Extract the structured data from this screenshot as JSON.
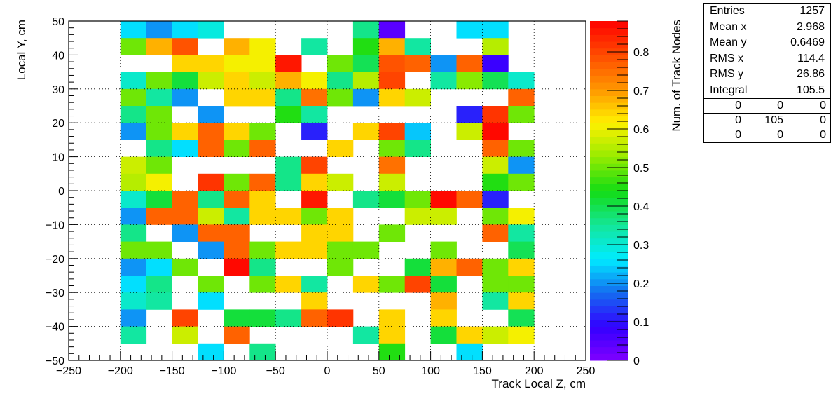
{
  "chart_data": {
    "type": "heatmap",
    "title": "",
    "xlabel": "Track Local Z, cm",
    "ylabel": "Local Y, cm",
    "zlabel": "Num. of Track Nodes",
    "xlim": [
      -250,
      250
    ],
    "ylim": [
      -50,
      50
    ],
    "zlim": [
      0,
      0.88
    ],
    "x_bin_edges_start": -200,
    "x_bin_width": 25,
    "x_bins": 16,
    "y_bin_edges_start": -50,
    "y_bin_width": 5,
    "y_bins": 20,
    "x_ticks": [
      -250,
      -200,
      -150,
      -100,
      -50,
      0,
      50,
      100,
      150,
      200,
      250
    ],
    "y_ticks": [
      -50,
      -40,
      -30,
      -20,
      -10,
      0,
      10,
      20,
      30,
      40,
      50
    ],
    "z_ticks": [
      0,
      0.1,
      0.2,
      0.3,
      0.4,
      0.5,
      0.6,
      0.7,
      0.8
    ],
    "grid": true,
    "values_rows_top_to_bottom": [
      [
        0.26,
        0.2,
        0.26,
        0.29,
        null,
        null,
        null,
        null,
        null,
        0.36,
        0.05,
        null,
        null,
        0.26,
        0.26,
        null
      ],
      [
        0.5,
        0.68,
        0.78,
        null,
        0.68,
        0.6,
        null,
        0.34,
        null,
        0.44,
        0.68,
        0.34,
        null,
        null,
        0.55,
        null
      ],
      [
        null,
        null,
        0.65,
        0.65,
        0.6,
        0.6,
        0.85,
        null,
        0.5,
        0.4,
        0.78,
        0.76,
        0.2,
        0.76,
        0.08,
        null
      ],
      [
        0.3,
        0.5,
        0.42,
        0.58,
        0.65,
        0.58,
        0.68,
        0.6,
        0.36,
        0.55,
        0.8,
        null,
        0.34,
        0.52,
        0.4,
        0.3
      ],
      [
        0.5,
        0.34,
        0.2,
        null,
        0.65,
        0.65,
        0.36,
        0.74,
        0.5,
        0.2,
        0.65,
        0.58,
        null,
        null,
        null,
        0.76
      ],
      [
        0.36,
        0.5,
        null,
        0.2,
        null,
        null,
        0.44,
        0.34,
        null,
        null,
        null,
        null,
        null,
        0.12,
        0.82,
        0.5
      ],
      [
        0.2,
        0.5,
        0.65,
        0.76,
        0.65,
        0.5,
        null,
        0.12,
        null,
        0.65,
        0.8,
        0.24,
        null,
        0.58,
        0.87,
        null
      ],
      [
        null,
        0.36,
        0.26,
        0.76,
        0.5,
        0.76,
        null,
        null,
        0.65,
        null,
        0.5,
        0.36,
        null,
        null,
        0.76,
        0.5
      ],
      [
        0.58,
        0.5,
        null,
        null,
        null,
        null,
        0.36,
        0.8,
        null,
        null,
        0.74,
        null,
        null,
        null,
        0.58,
        0.2
      ],
      [
        0.55,
        0.6,
        null,
        0.82,
        0.5,
        0.76,
        0.36,
        0.65,
        0.58,
        null,
        0.58,
        null,
        null,
        null,
        0.44,
        0.5
      ],
      [
        0.3,
        0.42,
        0.76,
        0.36,
        0.76,
        0.65,
        null,
        0.85,
        null,
        0.36,
        0.42,
        0.5,
        0.87,
        0.76,
        0.12,
        null
      ],
      [
        0.2,
        0.76,
        0.76,
        0.58,
        0.34,
        0.65,
        0.65,
        0.5,
        0.65,
        null,
        null,
        0.58,
        0.58,
        null,
        0.5,
        0.6
      ],
      [
        0.36,
        null,
        0.2,
        0.76,
        0.76,
        null,
        null,
        0.65,
        0.65,
        null,
        0.5,
        null,
        null,
        null,
        0.76,
        0.34
      ],
      [
        0.5,
        0.5,
        null,
        0.2,
        0.76,
        0.5,
        0.65,
        0.65,
        0.5,
        0.5,
        null,
        null,
        0.5,
        null,
        null,
        0.4
      ],
      [
        0.2,
        0.26,
        0.5,
        null,
        0.87,
        0.36,
        null,
        null,
        0.5,
        null,
        null,
        0.42,
        0.68,
        0.76,
        0.5,
        0.65
      ],
      [
        0.26,
        0.36,
        null,
        0.5,
        null,
        0.5,
        0.65,
        0.34,
        null,
        0.65,
        0.5,
        0.8,
        0.42,
        null,
        0.5,
        0.5
      ],
      [
        0.3,
        0.34,
        null,
        0.26,
        null,
        null,
        null,
        0.65,
        null,
        null,
        null,
        null,
        0.68,
        null,
        0.34,
        0.65
      ],
      [
        0.2,
        null,
        0.8,
        null,
        0.42,
        0.42,
        0.36,
        0.76,
        0.82,
        null,
        0.65,
        null,
        0.65,
        null,
        null,
        0.4
      ],
      [
        0.34,
        null,
        0.58,
        null,
        0.76,
        null,
        null,
        null,
        null,
        0.34,
        0.65,
        null,
        0.42,
        0.65,
        0.58,
        0.6
      ],
      [
        null,
        null,
        null,
        0.26,
        null,
        0.36,
        null,
        null,
        null,
        null,
        0.44,
        null,
        null,
        0.26,
        null,
        null
      ]
    ]
  },
  "stats_box": {
    "rows": [
      {
        "label": "Entries",
        "value": "1257"
      },
      {
        "label": "Mean x",
        "value": "2.968"
      },
      {
        "label": "Mean y",
        "value": "0.6469"
      },
      {
        "label": "RMS x",
        "value": "114.4"
      },
      {
        "label": "RMS y",
        "value": "26.86"
      },
      {
        "label": "Integral",
        "value": "105.5"
      }
    ],
    "grid": [
      "0",
      "0",
      "0",
      "0",
      "105",
      "0",
      "0",
      "0",
      "0"
    ]
  }
}
